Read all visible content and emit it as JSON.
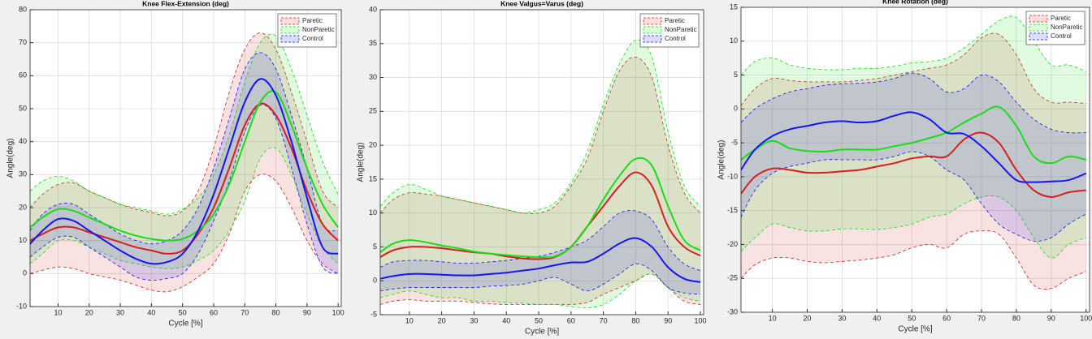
{
  "chart_data": [
    {
      "type": "line",
      "title": "Knee Flex-Extension (deg)",
      "xlabel": "Cycle [%]",
      "ylabel": "Angle(deg)",
      "x": [
        1,
        5,
        10,
        15,
        20,
        25,
        30,
        35,
        40,
        45,
        50,
        55,
        60,
        65,
        70,
        75,
        80,
        85,
        90,
        95,
        100
      ],
      "xlim": [
        1,
        101
      ],
      "xticks": [
        10,
        20,
        30,
        40,
        50,
        60,
        70,
        80,
        90,
        100
      ],
      "ylim": [
        -10,
        80
      ],
      "yticks": [
        -10,
        0,
        10,
        20,
        30,
        40,
        50,
        60,
        70,
        80
      ],
      "grid": true,
      "legend": "upper right",
      "series": [
        {
          "name": "Paretic",
          "color": "#d42020",
          "values": [
            10,
            12,
            14,
            14,
            12.5,
            11,
            9.5,
            8,
            7,
            6,
            7,
            12,
            20,
            32,
            45,
            51.5,
            48,
            38,
            25,
            15,
            10
          ],
          "upper": [
            20,
            24,
            27,
            27.5,
            25,
            23,
            21,
            19.5,
            18.5,
            17.5,
            19,
            25,
            38,
            55,
            68,
            73,
            68,
            55,
            40,
            25,
            20
          ],
          "lower": [
            0,
            1,
            2,
            1.5,
            0,
            -1,
            -2,
            -3.5,
            -5,
            -5.5,
            -4,
            -1,
            3,
            12,
            25,
            30,
            28,
            20,
            10,
            3,
            0
          ]
        },
        {
          "name": "NonParetic",
          "color": "#18dd18",
          "values": [
            14,
            17,
            19.5,
            19,
            17,
            15,
            13,
            11.5,
            10.5,
            10,
            10.5,
            13,
            18,
            27,
            40,
            52,
            55,
            45,
            32,
            21,
            14
          ],
          "upper": [
            25,
            28,
            29.5,
            28,
            25,
            23,
            21,
            20,
            19,
            18,
            19.5,
            23,
            30,
            42,
            58,
            70,
            72,
            62,
            48,
            34,
            24
          ],
          "lower": [
            3,
            6,
            10,
            10,
            8,
            6,
            4,
            3,
            2,
            1.5,
            2,
            4,
            7,
            13,
            22,
            35,
            38,
            30,
            18,
            8,
            3
          ]
        },
        {
          "name": "Control",
          "color": "#1515ee",
          "values": [
            9,
            13,
            16.5,
            16,
            13,
            10,
            7,
            4.5,
            3,
            3.5,
            6,
            13,
            24,
            38,
            52,
            59,
            54,
            40,
            23,
            8,
            6
          ],
          "upper": [
            13,
            18,
            21,
            21,
            18,
            15,
            12,
            10,
            9,
            10,
            13,
            20,
            32,
            47,
            62,
            67,
            62,
            48,
            32,
            15,
            13
          ],
          "lower": [
            5,
            8,
            11,
            11,
            8,
            5,
            2,
            -1,
            -2,
            -1.5,
            0,
            6,
            16,
            28,
            43,
            51,
            47,
            32,
            15,
            2,
            0
          ]
        }
      ]
    },
    {
      "type": "line",
      "title": "Knee Valgus=Varus (deg)",
      "xlabel": "Cycle [%]",
      "ylabel": "Angle(deg)",
      "x": [
        1,
        5,
        10,
        15,
        20,
        25,
        30,
        35,
        40,
        45,
        50,
        55,
        60,
        65,
        70,
        75,
        80,
        85,
        90,
        95,
        100
      ],
      "xlim": [
        1,
        101
      ],
      "xticks": [
        10,
        20,
        30,
        40,
        50,
        60,
        70,
        80,
        90,
        100
      ],
      "ylim": [
        -5,
        40
      ],
      "yticks": [
        -5,
        0,
        5,
        10,
        15,
        20,
        25,
        30,
        35,
        40
      ],
      "grid": true,
      "legend": "upper right",
      "series": [
        {
          "name": "Paretic",
          "color": "#d42020",
          "values": [
            3.5,
            4.5,
            5,
            5,
            4.8,
            4.5,
            4.2,
            4,
            3.6,
            3.3,
            3.2,
            3.5,
            5,
            8,
            11,
            14,
            16,
            14,
            8,
            5,
            3.7
          ],
          "upper": [
            10,
            12,
            13,
            12.8,
            12.5,
            12,
            11.5,
            11,
            10.5,
            10,
            10,
            11,
            14,
            18,
            25,
            31,
            33,
            30,
            20,
            13,
            10
          ],
          "lower": [
            -3.5,
            -3,
            -2.8,
            -3,
            -3,
            -3,
            -3.2,
            -3.4,
            -3.5,
            -3.5,
            -3.5,
            -3.5,
            -3.5,
            -3.2,
            -2,
            -1,
            0,
            1,
            -1,
            -3,
            -3.5
          ]
        },
        {
          "name": "NonParetic",
          "color": "#18dd18",
          "values": [
            4.2,
            5.5,
            6,
            5.7,
            5.2,
            4.8,
            4.3,
            4,
            3.8,
            3.6,
            3.5,
            3.6,
            5,
            8,
            12,
            15.5,
            18,
            17,
            11,
            6,
            4.5
          ],
          "upper": [
            11,
            13,
            14.2,
            13.5,
            12.5,
            12,
            11.5,
            11,
            10.5,
            10,
            10.5,
            11.5,
            14.5,
            19,
            26,
            32,
            35.5,
            33,
            22,
            14,
            11
          ],
          "lower": [
            -2.5,
            -2,
            -1.5,
            -2,
            -2.5,
            -2.5,
            -3,
            -3,
            -3.2,
            -3.3,
            -3.5,
            -3.5,
            -3.8,
            -4,
            -3.5,
            -2,
            0,
            1,
            -1,
            -2.5,
            -3
          ]
        },
        {
          "name": "Control",
          "color": "#1515ee",
          "values": [
            0.3,
            0.7,
            1,
            1,
            0.9,
            0.8,
            0.8,
            1,
            1.2,
            1.5,
            1.8,
            2.3,
            2.7,
            2.8,
            4,
            5.5,
            6.3,
            5,
            2,
            0.3,
            -0.2
          ],
          "upper": [
            2,
            2.8,
            3,
            3,
            2.8,
            2.6,
            2.6,
            2.8,
            3,
            3.3,
            3.6,
            4.2,
            5,
            6,
            8,
            10,
            10.3,
            9,
            5,
            2.5,
            1.5
          ],
          "lower": [
            -1.5,
            -1.2,
            -1,
            -1,
            -1,
            -1,
            -1,
            -0.8,
            -0.7,
            -0.5,
            0,
            0.5,
            -0.5,
            -1.5,
            -0.5,
            1,
            2.5,
            1.5,
            -1,
            -1.8,
            -2
          ]
        }
      ]
    },
    {
      "type": "line",
      "title": "Knee Rotation (deg)",
      "xlabel": "Cycle [%]",
      "ylabel": "Angle(deg)",
      "x": [
        1,
        5,
        10,
        15,
        20,
        25,
        30,
        35,
        40,
        45,
        50,
        55,
        60,
        65,
        70,
        75,
        80,
        85,
        90,
        95,
        100
      ],
      "xlim": [
        1,
        101
      ],
      "xticks": [
        10,
        20,
        30,
        40,
        50,
        60,
        70,
        80,
        90,
        100
      ],
      "ylim": [
        -30,
        15
      ],
      "yticks": [
        -30,
        -25,
        -20,
        -15,
        -10,
        -5,
        0,
        5,
        10,
        15
      ],
      "grid": true,
      "legend": "upper right",
      "series": [
        {
          "name": "Paretic",
          "color": "#d42020",
          "values": [
            -12.5,
            -10,
            -8.8,
            -9,
            -9.4,
            -9.4,
            -9.2,
            -9,
            -8.5,
            -8,
            -7.3,
            -7,
            -7,
            -4.5,
            -3.5,
            -5,
            -9,
            -12,
            -13,
            -12.3,
            -12
          ],
          "upper": [
            0.5,
            3,
            4.5,
            4.2,
            4,
            4,
            4,
            4.2,
            4.5,
            5,
            5.5,
            6,
            6.5,
            8,
            10.5,
            11,
            8,
            3,
            1,
            1,
            0.8
          ],
          "lower": [
            -25,
            -23,
            -22,
            -22,
            -22.5,
            -22.7,
            -22.5,
            -22.3,
            -22,
            -21.5,
            -20.5,
            -20,
            -20.5,
            -18.5,
            -18,
            -18.5,
            -22,
            -26,
            -26.5,
            -25,
            -24
          ]
        },
        {
          "name": "NonParetic",
          "color": "#18dd18",
          "values": [
            -7.5,
            -6,
            -4.7,
            -5.8,
            -6.2,
            -6.3,
            -6,
            -6,
            -6,
            -5.5,
            -5,
            -4.3,
            -3.5,
            -2,
            -0.7,
            0.3,
            -2.5,
            -7,
            -8,
            -7,
            -7.5
          ],
          "upper": [
            5,
            7,
            7.5,
            6.5,
            6,
            5.8,
            5.8,
            6,
            6,
            6.3,
            6.8,
            7,
            7.5,
            9,
            11,
            13,
            13.5,
            10,
            6.5,
            6.5,
            5.5
          ],
          "lower": [
            -21,
            -19,
            -17,
            -17.5,
            -18,
            -18,
            -17.7,
            -17.7,
            -17.8,
            -17.5,
            -17,
            -16,
            -15.5,
            -14,
            -13,
            -13,
            -15,
            -19,
            -22,
            -20,
            -19
          ]
        },
        {
          "name": "Control",
          "color": "#1515ee",
          "values": [
            -9,
            -6,
            -4,
            -3,
            -2.5,
            -2,
            -1.8,
            -2,
            -1.8,
            -1,
            -0.5,
            -1.5,
            -3.5,
            -3.7,
            -5.5,
            -8,
            -10.5,
            -10.8,
            -10.7,
            -10.5,
            -9.5
          ],
          "upper": [
            -2,
            0,
            1.5,
            2.5,
            3,
            3.5,
            3.7,
            3.8,
            4,
            4.5,
            5.3,
            4.5,
            2.5,
            3,
            5,
            4,
            1,
            -1.5,
            -3,
            -3.5,
            -3.5
          ],
          "lower": [
            -16,
            -12,
            -9.5,
            -8.5,
            -8,
            -7.5,
            -7.5,
            -7.5,
            -7.5,
            -7,
            -6.3,
            -7,
            -9,
            -10.5,
            -14,
            -17,
            -18.5,
            -19.5,
            -19,
            -17,
            -15.5
          ]
        }
      ]
    }
  ]
}
